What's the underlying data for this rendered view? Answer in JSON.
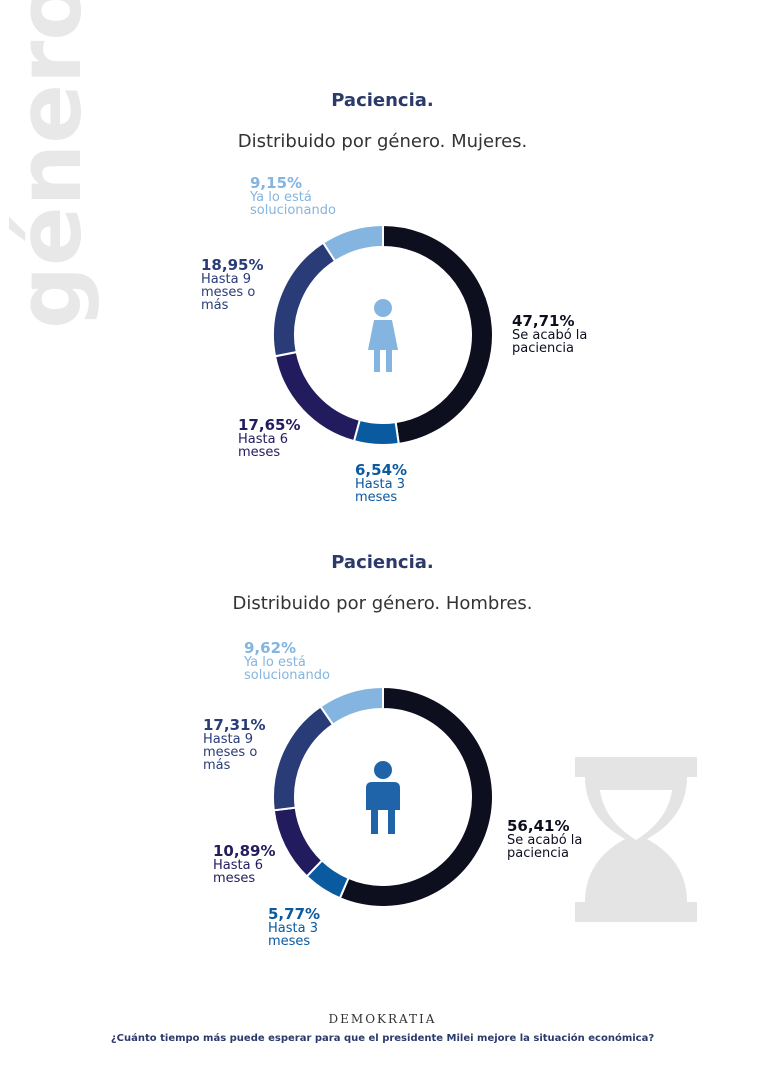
{
  "page": {
    "side_label": "género",
    "brand": "DEMOKRATIA",
    "question": "¿Cuánto tiempo más puede esperar para que el presidente Milei mejore la situación económica?"
  },
  "chart_data": [
    {
      "type": "pie",
      "title": "Paciencia.",
      "subtitle": "Distribuido por género. Mujeres.",
      "categories": [
        "Se acabó la paciencia",
        "Hasta 3 meses",
        "Hasta 6 meses",
        "Hasta 9 meses o más",
        "Ya lo está solucionando"
      ],
      "values": [
        47.71,
        6.54,
        17.65,
        18.95,
        9.15
      ],
      "value_labels": [
        "47,71%",
        "6,54%",
        "17,65%",
        "18,95%",
        "9,15%"
      ],
      "colors": [
        "#0d0f1f",
        "#0a5aa0",
        "#221c5e",
        "#2a3c78",
        "#84b5e0"
      ]
    },
    {
      "type": "pie",
      "title": "Paciencia.",
      "subtitle": "Distribuido por género. Hombres.",
      "categories": [
        "Se acabó la paciencia",
        "Hasta 3 meses",
        "Hasta 6 meses",
        "Hasta 9 meses o más",
        "Ya lo está solucionando"
      ],
      "values": [
        56.41,
        5.77,
        10.89,
        17.31,
        9.62
      ],
      "value_labels": [
        "56,41%",
        "5,77%",
        "10,89%",
        "17,31%",
        "9,62%"
      ],
      "colors": [
        "#0d0f1f",
        "#0a5aa0",
        "#221c5e",
        "#2a3c78",
        "#84b5e0"
      ]
    }
  ]
}
